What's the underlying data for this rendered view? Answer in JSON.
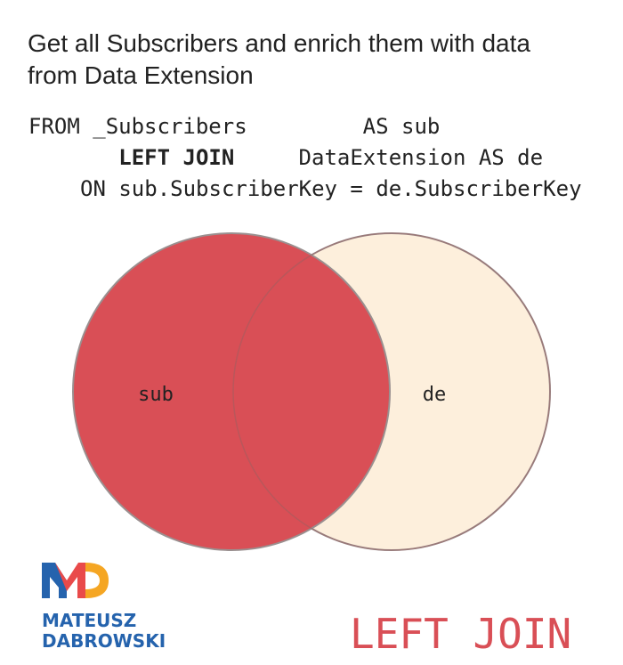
{
  "header": {
    "title_lines": [
      "Get all Subscribers and enrich them with data",
      "from Data Extension"
    ]
  },
  "code": {
    "line1": "FROM _Subscribers         AS sub",
    "line2": {
      "keyword": "LEFT JOIN",
      "text": "DataExtension AS de"
    },
    "line3": "ON sub.SubscriberKey = de.SubscriberKey"
  },
  "venn": {
    "left_label": "sub",
    "right_label": "de"
  },
  "logo": {
    "name_lines": [
      "MATEUSZ",
      "DABROWSKI"
    ]
  },
  "footer": {
    "join_type": "LEFT JOIN"
  }
}
